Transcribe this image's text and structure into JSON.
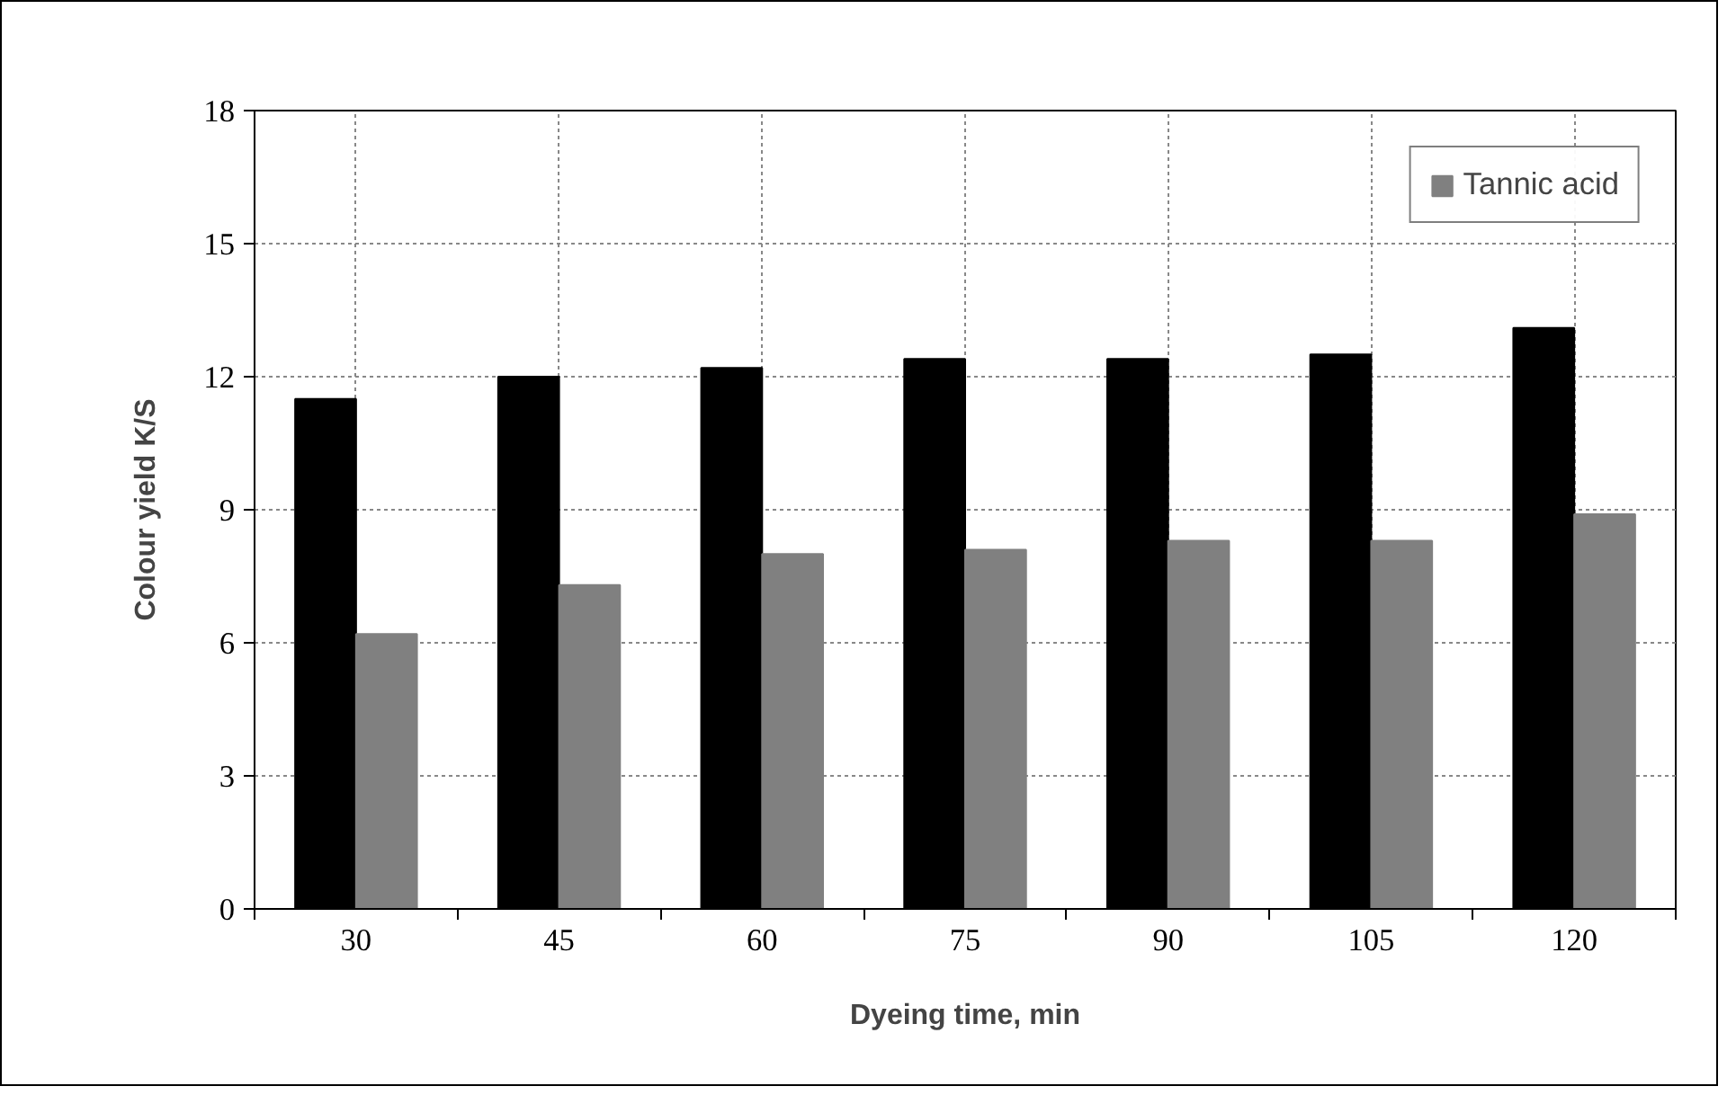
{
  "chart_data": {
    "type": "bar",
    "xlabel": "Dyeing time, min",
    "ylabel": "Colour yield K/S",
    "categories": [
      "30",
      "45",
      "60",
      "75",
      "90",
      "105",
      "120"
    ],
    "series": [
      {
        "color": "#000000",
        "values": [
          11.5,
          12.0,
          12.2,
          12.4,
          12.4,
          12.5,
          13.1
        ]
      },
      {
        "name": "Tannic acid",
        "color": "#808080",
        "values": [
          6.2,
          7.3,
          8.0,
          8.1,
          8.3,
          8.3,
          8.9
        ]
      }
    ],
    "ylim": [
      0,
      18
    ],
    "yticks": [
      0,
      3,
      6,
      9,
      12,
      15,
      18
    ],
    "grid": true,
    "legend": "top right"
  }
}
